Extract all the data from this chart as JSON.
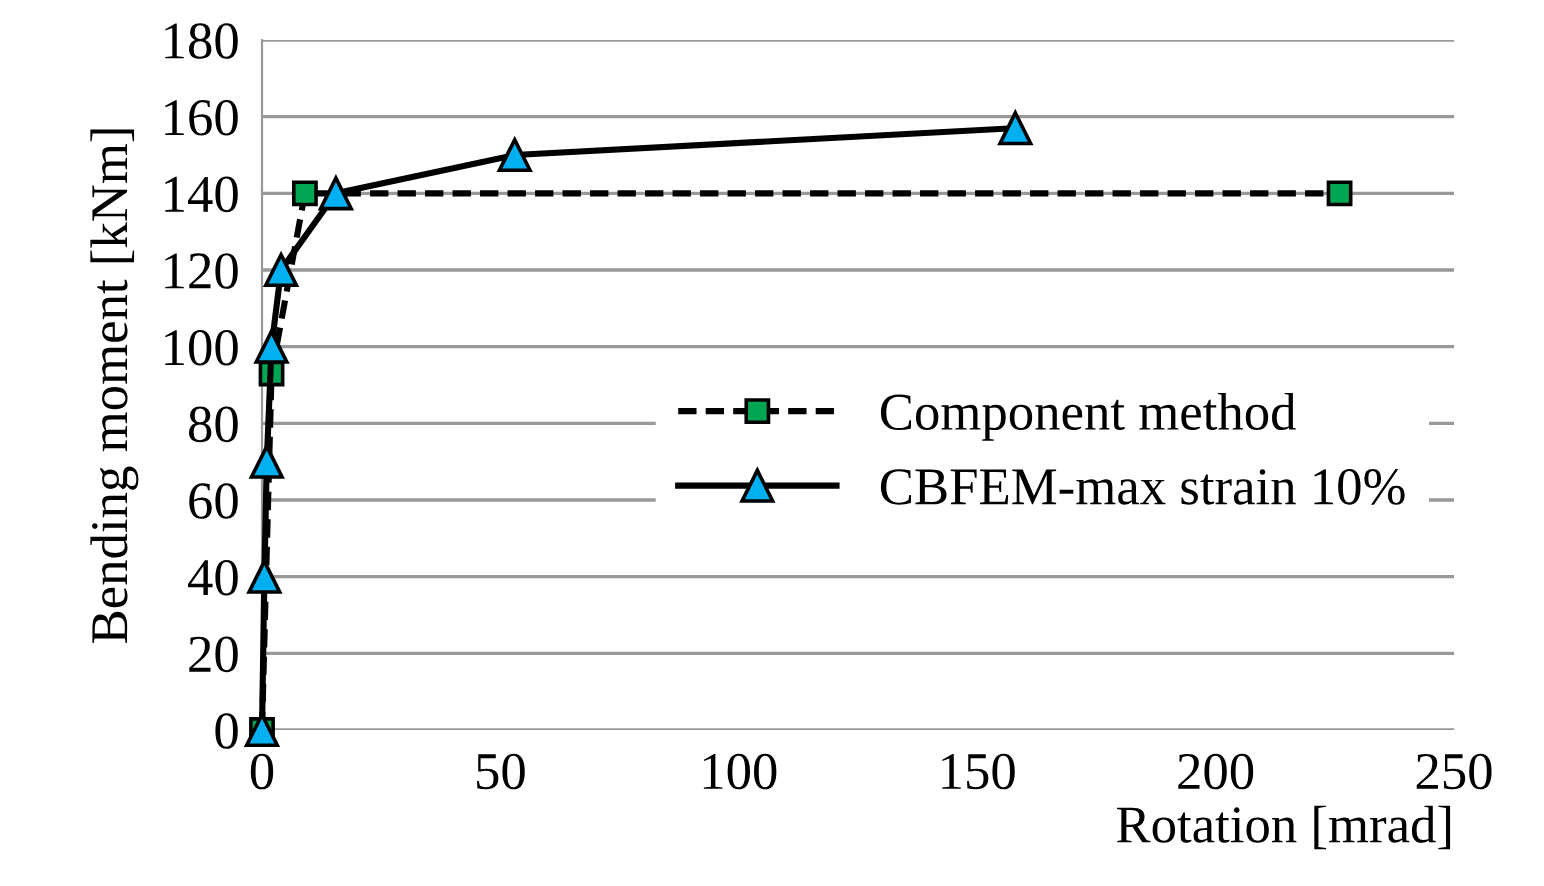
{
  "chart_data": {
    "type": "line",
    "xlabel": "Rotation [mrad]",
    "ylabel": "Bending moment [kNm]",
    "xlim": [
      0,
      250
    ],
    "xticks": [
      0,
      50,
      100,
      150,
      200,
      250
    ],
    "ylim": [
      0,
      180
    ],
    "yticks": [
      0,
      20,
      40,
      60,
      80,
      100,
      120,
      140,
      160,
      180
    ],
    "grid": "y",
    "legend": "center right",
    "series": [
      {
        "name": "Component method",
        "color": "#00a651",
        "line_style": "dashed",
        "marker": "square",
        "x": [
          0,
          2,
          9,
          226
        ],
        "values": [
          0,
          93,
          140,
          140
        ]
      },
      {
        "name": "CBFEM-max strain 10%",
        "color": "#00b0f0",
        "line_style": "solid",
        "marker": "triangle",
        "x": [
          0,
          0.5,
          1,
          2,
          4,
          15.5,
          53,
          158
        ],
        "values": [
          0,
          40,
          70,
          100,
          120,
          140,
          150,
          157
        ]
      }
    ]
  }
}
